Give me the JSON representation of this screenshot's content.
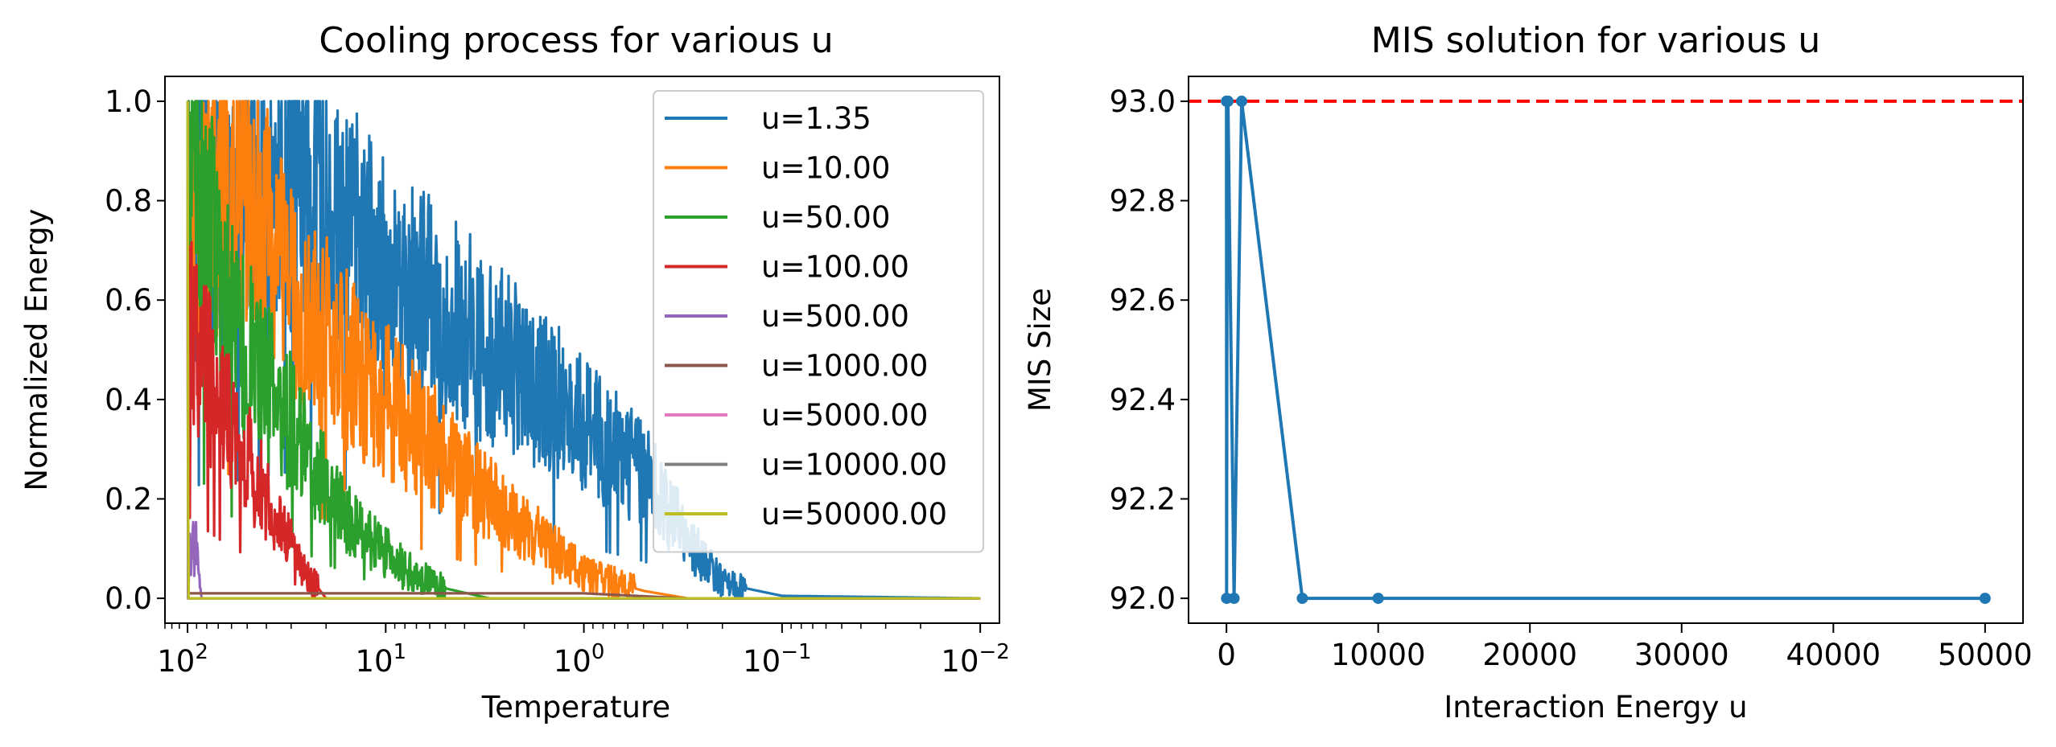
{
  "charts": {
    "left": {
      "title": "Cooling process for various u",
      "xlabel": "Temperature",
      "ylabel": "Normalized Energy",
      "yticks": [
        "0.0",
        "0.2",
        "0.4",
        "0.6",
        "0.8",
        "1.0"
      ],
      "xticks": [
        {
          "base": "10",
          "exp": "2"
        },
        {
          "base": "10",
          "exp": "1"
        },
        {
          "base": "10",
          "exp": "0"
        },
        {
          "base": "10",
          "exp": "−1"
        },
        {
          "base": "10",
          "exp": "−2"
        }
      ]
    },
    "right": {
      "title": "MIS solution for various u",
      "xlabel": "Interaction Energy u",
      "ylabel": "MIS Size",
      "yticks": [
        "92.0",
        "92.2",
        "92.4",
        "92.6",
        "92.8",
        "93.0"
      ],
      "xticks": [
        "0",
        "10000",
        "20000",
        "30000",
        "40000",
        "50000"
      ]
    }
  },
  "chart_data": [
    {
      "type": "line",
      "title": "Cooling process for various u",
      "xlabel": "Temperature",
      "ylabel": "Normalized Energy",
      "xscale": "log",
      "xaxis_inverted": true,
      "xlim": [
        130,
        0.008
      ],
      "ylim": [
        -0.05,
        1.05
      ],
      "grid": false,
      "legend_position": "upper right",
      "series": [
        {
          "name": "u=1.35",
          "color": "#1f77b4",
          "envelope": [
            [
              100,
              0.75
            ],
            [
              50,
              0.8
            ],
            [
              30,
              0.85
            ],
            [
              10,
              0.65
            ],
            [
              3,
              0.5
            ],
            [
              1,
              0.35
            ],
            [
              0.5,
              0.25
            ],
            [
              0.3,
              0.12
            ],
            [
              0.2,
              0.03
            ],
            [
              0.1,
              0.005
            ],
            [
              0.01,
              0.0
            ]
          ]
        },
        {
          "name": "u=10.00",
          "color": "#ff7f0e",
          "envelope": [
            [
              100,
              0.8
            ],
            [
              50,
              0.85
            ],
            [
              30,
              0.6
            ],
            [
              10,
              0.4
            ],
            [
              3,
              0.2
            ],
            [
              1,
              0.05
            ],
            [
              0.5,
              0.015
            ],
            [
              0.3,
              0.0
            ],
            [
              0.01,
              0.0
            ]
          ]
        },
        {
          "name": "u=50.00",
          "color": "#2ca02c",
          "envelope": [
            [
              100,
              0.9
            ],
            [
              60,
              0.55
            ],
            [
              30,
              0.35
            ],
            [
              15,
              0.15
            ],
            [
              8,
              0.06
            ],
            [
              5,
              0.02
            ],
            [
              3,
              0.0
            ],
            [
              0.01,
              0.0
            ]
          ]
        },
        {
          "name": "u=100.00",
          "color": "#d62728",
          "envelope": [
            [
              100,
              0.55
            ],
            [
              70,
              0.4
            ],
            [
              40,
              0.2
            ],
            [
              25,
              0.05
            ],
            [
              20,
              0.0
            ],
            [
              0.01,
              0.0
            ]
          ]
        },
        {
          "name": "u=500.00",
          "color": "#9467bd",
          "envelope": [
            [
              100,
              0.1
            ],
            [
              90,
              0.1
            ],
            [
              85,
              0.0
            ],
            [
              0.01,
              0.0
            ]
          ]
        },
        {
          "name": "u=1000.00",
          "color": "#8c564b",
          "envelope": [
            [
              100,
              0.01
            ],
            [
              1,
              0.01
            ],
            [
              0.3,
              0.0
            ],
            [
              0.01,
              0.0
            ]
          ]
        },
        {
          "name": "u=5000.00",
          "color": "#e377c2",
          "envelope": [
            [
              100,
              0.0
            ],
            [
              0.01,
              0.0
            ]
          ]
        },
        {
          "name": "u=10000.00",
          "color": "#7f7f7f",
          "envelope": [
            [
              100,
              0.0
            ],
            [
              0.01,
              0.0
            ]
          ]
        },
        {
          "name": "u=50000.00",
          "color": "#bcbd22",
          "envelope": [
            [
              100,
              1.0
            ],
            [
              99,
              0.0
            ],
            [
              0.01,
              0.0
            ]
          ]
        }
      ]
    },
    {
      "type": "line",
      "title": "MIS solution for various u",
      "xlabel": "Interaction Energy u",
      "ylabel": "MIS Size",
      "xlim": [
        -2500,
        52500
      ],
      "ylim": [
        91.95,
        93.05
      ],
      "grid": false,
      "color": "#1f77b4",
      "x": [
        1.35,
        10,
        50,
        100,
        500,
        1000,
        5000,
        10000,
        50000
      ],
      "y": [
        93,
        92,
        93,
        93,
        92,
        93,
        92,
        92,
        92
      ],
      "reference_line": {
        "y": 93,
        "color": "#ff0000",
        "style": "dashed"
      }
    }
  ]
}
